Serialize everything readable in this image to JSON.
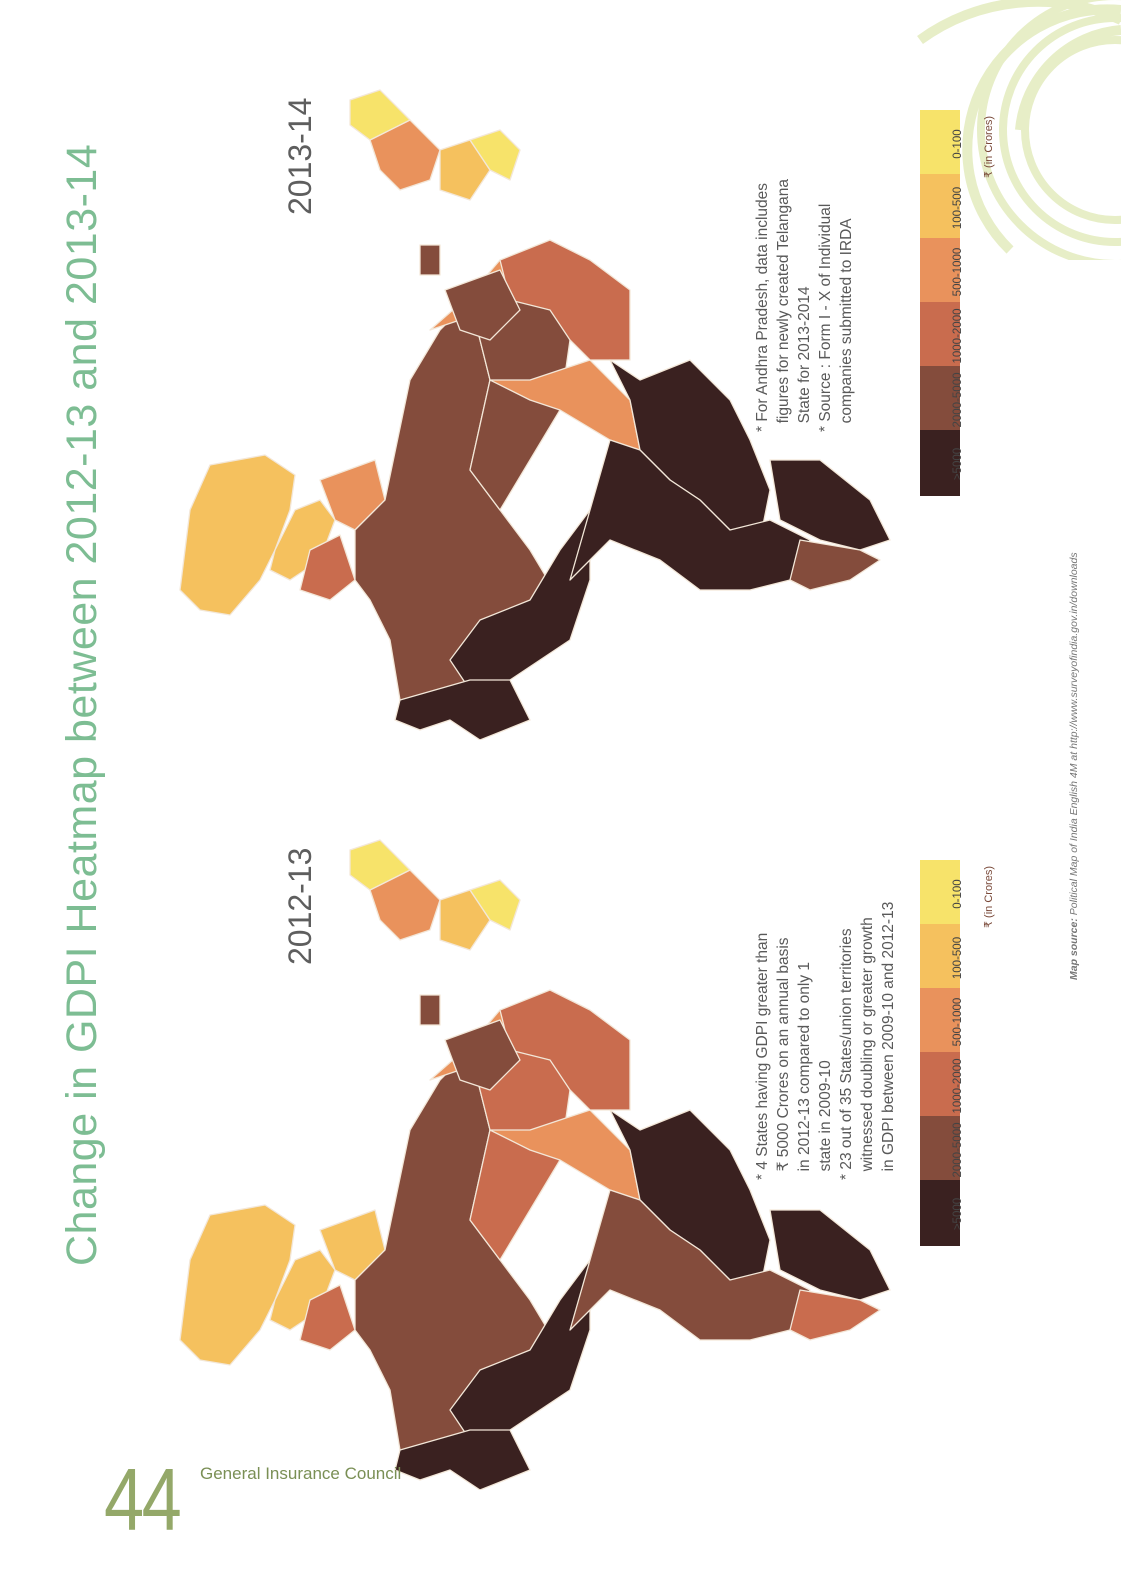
{
  "title": "Change in GDPI Heatmap between 2012-13 and 2013-14",
  "colors": {
    "c0_100": "#f7e36a",
    "c100_500": "#f5c15e",
    "c500_1000": "#e9925c",
    "c1000_2000": "#c96c4e",
    "c2000_5000": "#844c3c",
    "c5000": "#3a2120",
    "accent": "#7dbd93"
  },
  "legend": {
    "categories": [
      ">5000",
      "2000-5000",
      "1000-2000",
      "500-1000",
      "100-500",
      "0-100"
    ],
    "unit": "₹ (in Crores)"
  },
  "map_2012": {
    "year": "2012-13",
    "notes": "* 4 States having GDPI greater than\n  ₹ 5000 Crores on an annual basis\n  in 2012-13 compared to only 1\n  state in 2009-10\n* 23 out of 35 States/union territories\n  witnessed doubling or greater growth\n  in GDPI between 2009-10 and 2012-13"
  },
  "map_2013": {
    "year": "2013-14",
    "notes": "* For Andhra Pradesh, data includes\n  figures for newly created Telangana\n  State for 2013-2014\n* Source : Form I - X of Individual\n  companies submitted to IRDA"
  },
  "map_source_label": "Map source:",
  "map_source_text": " Political Map of India English 4M at http://www.surveyofindia.gov.in/downloads",
  "page_number": "44",
  "publisher": "General Insurance Council"
}
